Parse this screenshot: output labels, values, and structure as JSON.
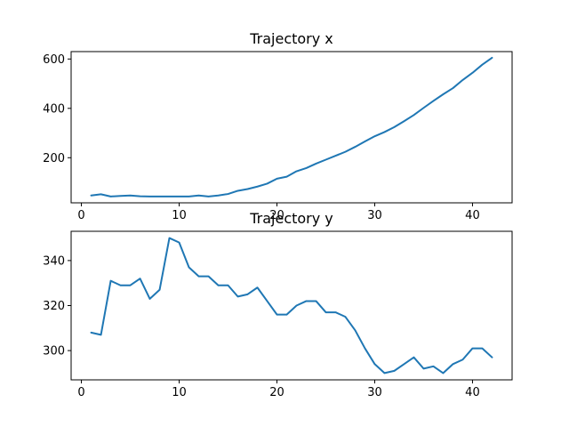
{
  "chart_data": [
    {
      "type": "line",
      "title": "Trajectory x",
      "xlabel": "",
      "ylabel": "",
      "xlim": [
        -1.05,
        44.05
      ],
      "ylim": [
        17.2,
        630
      ],
      "xticks": [
        0,
        10,
        20,
        30,
        40
      ],
      "yticks": [
        200,
        400,
        600
      ],
      "grid": false,
      "color": "#1f77b4",
      "series": [
        {
          "x": [
            1,
            2,
            3,
            4,
            5,
            6,
            7,
            8,
            9,
            10,
            11,
            12,
            13,
            14,
            15,
            16,
            17,
            18,
            19,
            20,
            21,
            22,
            23,
            24,
            25,
            26,
            27,
            28,
            29,
            30,
            31,
            32,
            33,
            34,
            35,
            36,
            37,
            38,
            39,
            40,
            41,
            42
          ],
          "values": [
            47,
            52,
            43,
            45,
            47,
            44,
            43,
            43,
            43,
            43,
            43,
            47,
            43,
            47,
            53,
            66,
            73,
            83,
            95,
            115,
            123,
            145,
            158,
            176,
            192,
            208,
            224,
            244,
            266,
            287,
            304,
            324,
            348,
            373,
            402,
            430,
            457,
            482,
            515,
            544,
            577,
            605
          ]
        }
      ]
    },
    {
      "type": "line",
      "title": "Trajectory y",
      "xlabel": "",
      "ylabel": "",
      "xlim": [
        -1.05,
        44.05
      ],
      "ylim": [
        287,
        353
      ],
      "xticks": [
        0,
        10,
        20,
        30,
        40
      ],
      "yticks": [
        300,
        320,
        340
      ],
      "grid": false,
      "color": "#1f77b4",
      "series": [
        {
          "x": [
            1,
            2,
            3,
            4,
            5,
            6,
            7,
            8,
            9,
            10,
            11,
            12,
            13,
            14,
            15,
            16,
            17,
            18,
            19,
            20,
            21,
            22,
            23,
            24,
            25,
            26,
            27,
            28,
            29,
            30,
            31,
            32,
            33,
            34,
            35,
            36,
            37,
            38,
            39,
            40,
            41,
            42
          ],
          "values": [
            308,
            307,
            331,
            329,
            329,
            332,
            323,
            327,
            350,
            348,
            337,
            333,
            333,
            329,
            329,
            324,
            325,
            328,
            322,
            316,
            316,
            320,
            322,
            322,
            317,
            317,
            315,
            309,
            301,
            294,
            290,
            291,
            294,
            297,
            292,
            293,
            290,
            294,
            296,
            301,
            301,
            297
          ]
        }
      ]
    }
  ]
}
